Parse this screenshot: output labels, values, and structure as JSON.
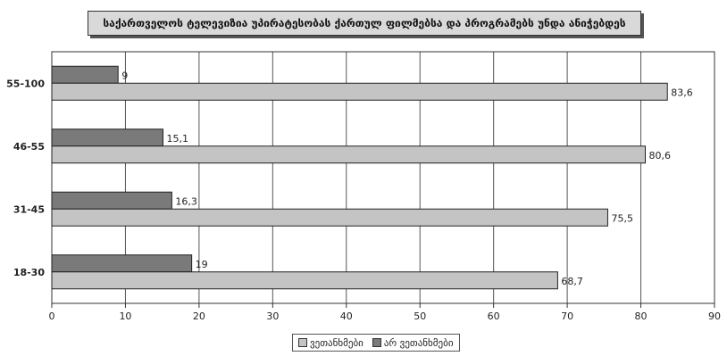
{
  "chart_data": {
    "type": "bar",
    "orientation": "horizontal",
    "title": "საქართველოს ტელევიზია უპირატესობას ქართულ ფილმებსა და პროგრამებს უნდა ანიჭებდეს",
    "categories": [
      "55-100",
      "46-55",
      "31-45",
      "18-30"
    ],
    "series": [
      {
        "name": "არ ვეთანხმები",
        "values": [
          9,
          15.1,
          16.3,
          19
        ],
        "labels": [
          "9",
          "15,1",
          "16,3",
          "19"
        ],
        "color": "#7a7a7a"
      },
      {
        "name": "ვეთანხმები",
        "values": [
          83.6,
          80.6,
          75.5,
          68.7
        ],
        "labels": [
          "83,6",
          "80,6",
          "75,5",
          "68,7"
        ],
        "color": "#c4c4c4"
      }
    ],
    "xlim": [
      0,
      90
    ],
    "xticks": [
      "0",
      "10",
      "20",
      "30",
      "40",
      "50",
      "60",
      "70",
      "80",
      "90"
    ],
    "grid": true,
    "legend_position": "bottom",
    "legend": [
      "ვეთანხმები",
      "არ ვეთანხმები"
    ]
  }
}
